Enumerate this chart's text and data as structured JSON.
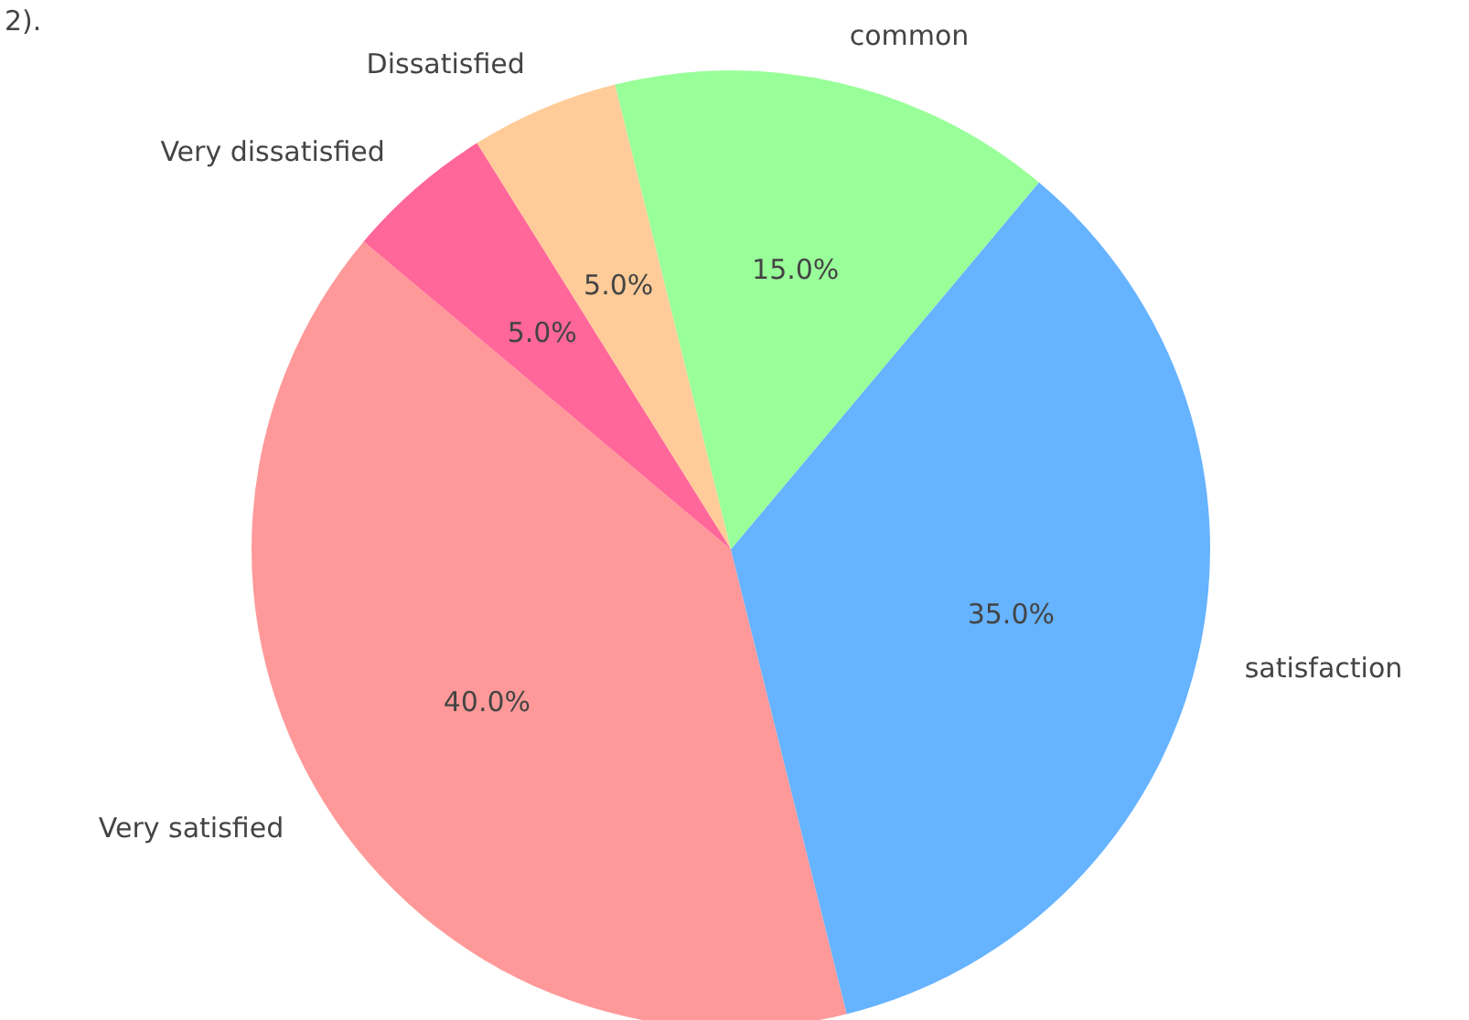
{
  "chart_data": {
    "type": "pie",
    "title": "2).",
    "categories": [
      "Very satisfied",
      "satisfaction",
      "common",
      "Dissatisfied",
      "Very dissatisfied"
    ],
    "values": [
      40,
      35,
      15,
      5,
      5
    ],
    "value_labels": [
      "40.0%",
      "35.0%",
      "15.0%",
      "5.0%",
      "5.0%"
    ],
    "colors": [
      "#ff9999",
      "#66b3ff",
      "#99ff99",
      "#ffcc99",
      "#ff6699"
    ]
  }
}
